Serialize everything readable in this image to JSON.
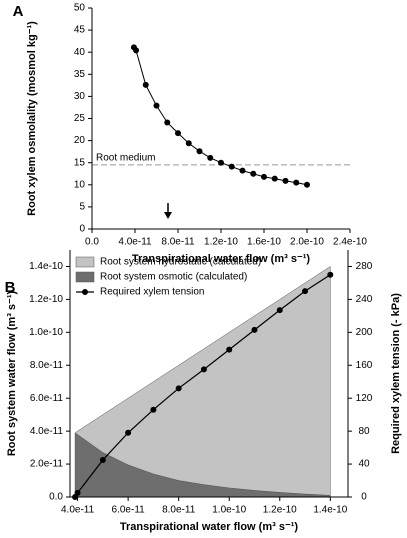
{
  "chart_data": [
    {
      "type": "line",
      "panel_label": "A",
      "x_label": "Transpirational water flow (m³ s⁻¹)",
      "y_label": "Root xylem osmolality (mosmol kg⁻¹)",
      "x": [
        3.9e-11,
        4.1e-11,
        5e-11,
        6e-11,
        7e-11,
        8e-11,
        9e-11,
        1e-10,
        1.1e-10,
        1.2e-10,
        1.3e-10,
        1.4e-10,
        1.5e-10,
        1.6e-10,
        1.7e-10,
        1.8e-10,
        1.9e-10,
        2e-10
      ],
      "values": [
        41.1,
        40.4,
        32.6,
        27.9,
        24.1,
        21.7,
        19.4,
        17.6,
        16.1,
        15.0,
        14.1,
        13.2,
        12.5,
        11.8,
        11.4,
        10.9,
        10.5,
        10.0
      ],
      "color": "#000000",
      "reference_line": {
        "value": 14.5,
        "label": "Root medium",
        "color": "#999999"
      },
      "xlim": [
        0,
        2.4e-10
      ],
      "xticks": [
        {
          "value": 0,
          "label": "0.0"
        },
        {
          "value": 4e-11,
          "label": "4.0e-11"
        },
        {
          "value": 8e-11,
          "label": "8.0e-11"
        },
        {
          "value": 1.2e-10,
          "label": "1.2e-10"
        },
        {
          "value": 1.6e-10,
          "label": "1.6e-10"
        },
        {
          "value": 2e-10,
          "label": "2.0e-10"
        },
        {
          "value": 2.4e-10,
          "label": "2.4e-10"
        }
      ],
      "ylim": [
        0,
        50
      ],
      "yticks": [
        0,
        5,
        10,
        15,
        20,
        25,
        30,
        35,
        40,
        45,
        50
      ]
    },
    {
      "type": "area",
      "panel_label": "B",
      "x_label": "Transpirational water flow (m³ s⁻¹)",
      "y_label": "Root system water flow (m³ s⁻¹)",
      "y2_label": "Required xylem tension (- kPa)",
      "x": [
        3.9e-11,
        5e-11,
        6e-11,
        7e-11,
        8e-11,
        9e-11,
        1e-10,
        1.1e-10,
        1.2e-10,
        1.3e-10,
        1.4e-10
      ],
      "series": [
        {
          "name": "Root system hydrostatic (calculated)",
          "color": "#c3c3c3",
          "values": [
            0,
            2.3e-11,
            4.05e-11,
            5.6e-11,
            7e-11,
            8.25e-11,
            9.45e-11,
            1.06e-10,
            1.172e-10,
            1.282e-10,
            1.39e-10
          ]
        },
        {
          "name": "Root system osmotic (calculated)",
          "color": "#6e6e6e",
          "values": [
            3.9e-11,
            2.7e-11,
            1.95e-11,
            1.4e-11,
            1e-11,
            7.5e-12,
            5.5e-12,
            4e-12,
            2.8e-12,
            1.8e-12,
            1e-12
          ]
        },
        {
          "name": "Required xylem tension",
          "color": "#000000",
          "axis": "y2",
          "x": [
            3.9e-11,
            4e-11,
            5e-11,
            6e-11,
            7e-11,
            8e-11,
            9e-11,
            1e-10,
            1.1e-10,
            1.2e-10,
            1.3e-10,
            1.4e-10
          ],
          "values": [
            0,
            5,
            45,
            78,
            106,
            132,
            155,
            179,
            203,
            227,
            250,
            270
          ]
        }
      ],
      "xlim": [
        3.7e-11,
        1.47e-10
      ],
      "xticks": [
        {
          "value": 4e-11,
          "label": "4.0e-11"
        },
        {
          "value": 6e-11,
          "label": "6.0e-11"
        },
        {
          "value": 8e-11,
          "label": "8.0e-11"
        },
        {
          "value": 1e-10,
          "label": "1.0e-10"
        },
        {
          "value": 1.2e-10,
          "label": "1.2e-10"
        },
        {
          "value": 1.4e-10,
          "label": "1.4e-10"
        }
      ],
      "ylim": [
        0,
        1.5e-10
      ],
      "yticks": [
        {
          "value": 0,
          "label": "0.0"
        },
        {
          "value": 2e-11,
          "label": "2.0e-11"
        },
        {
          "value": 4e-11,
          "label": "4.0e-11"
        },
        {
          "value": 6e-11,
          "label": "6.0e-11"
        },
        {
          "value": 8e-11,
          "label": "8.0e-11"
        },
        {
          "value": 1e-10,
          "label": "1.0e-10"
        },
        {
          "value": 1.2e-10,
          "label": "1.2e-10"
        },
        {
          "value": 1.4e-10,
          "label": "1.4e-10"
        }
      ],
      "y2lim": [
        0,
        300
      ],
      "y2ticks": [
        0,
        40,
        80,
        120,
        160,
        200,
        240,
        280
      ],
      "legend": "upper left"
    }
  ]
}
